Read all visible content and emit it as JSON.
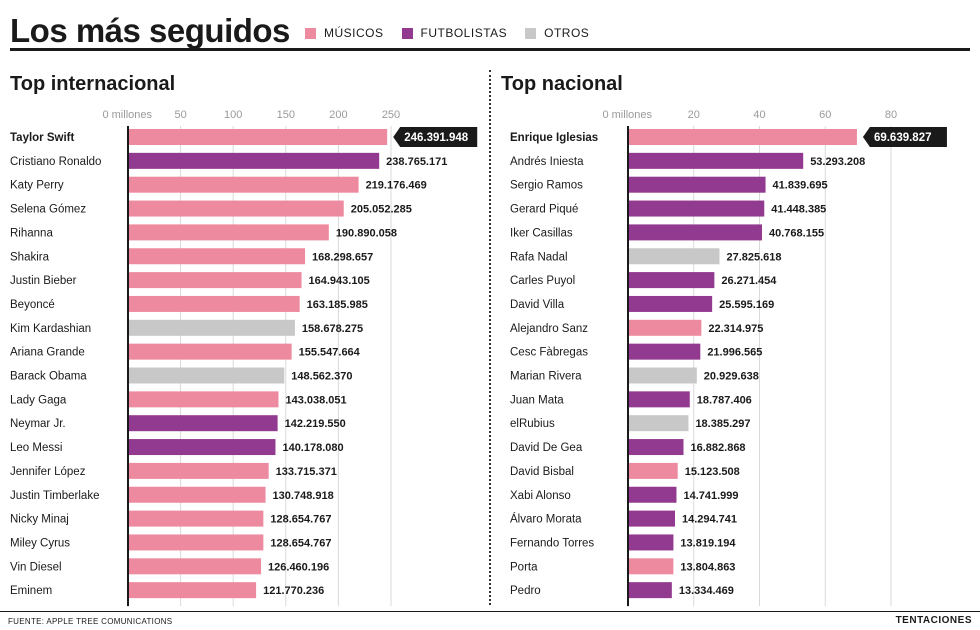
{
  "title": "Los más seguidos",
  "legend": [
    {
      "label": "MÚSICOS",
      "color": "#ee8aa0"
    },
    {
      "label": "FUTBOLISTAS",
      "color": "#923a8f"
    },
    {
      "label": "OTROS",
      "color": "#c8c8c8"
    }
  ],
  "footer": {
    "source": "FUENTE: APPLE TREE COMUNICATIONS",
    "brand": "TENTACIONES"
  },
  "colors": {
    "musico": "#ee8aa0",
    "futbolista": "#923a8f",
    "otro": "#c8c8c8",
    "highlight": "#1a1a1a"
  },
  "chart_data": [
    {
      "type": "bar",
      "orientation": "horizontal",
      "title": "Top internacional",
      "xlim": [
        0,
        250
      ],
      "ticks": [
        0,
        50,
        100,
        150,
        200,
        250
      ],
      "tick_labels": [
        "0 millones",
        "50",
        "100",
        "150",
        "200",
        "250"
      ],
      "highlight_index": 0,
      "categories": [
        "Taylor Swift",
        "Cristiano Ronaldo",
        "Katy Perry",
        "Selena Gómez",
        "Rihanna",
        "Shakira",
        "Justin Bieber",
        "Beyoncé",
        "Kim Kardashian",
        "Ariana Grande",
        "Barack Obama",
        "Lady Gaga",
        "Neymar Jr.",
        "Leo Messi",
        "Jennifer López",
        "Justin Timberlake",
        "Nicky Minaj",
        "Miley Cyrus",
        "Vin Diesel",
        "Eminem"
      ],
      "values": [
        246.391948,
        238.765171,
        219.176469,
        205.052285,
        190.890058,
        168.298657,
        164.943105,
        163.185985,
        158.678275,
        155.547664,
        148.56237,
        143.038051,
        142.21955,
        140.17808,
        133.715371,
        130.748918,
        128.654767,
        128.654767,
        126.460196,
        121.770236
      ],
      "value_labels": [
        "246.391.948",
        "238.765.171",
        "219.176.469",
        "205.052.285",
        "190.890.058",
        "168.298.657",
        "164.943.105",
        "163.185.985",
        "158.678.275",
        "155.547.664",
        "148.562.370",
        "143.038.051",
        "142.219.550",
        "140.178.080",
        "133.715.371",
        "130.748.918",
        "128.654.767",
        "128.654.767",
        "126.460.196",
        "121.770.236"
      ],
      "groups": [
        "musico",
        "futbolista",
        "musico",
        "musico",
        "musico",
        "musico",
        "musico",
        "musico",
        "otro",
        "musico",
        "otro",
        "musico",
        "futbolista",
        "futbolista",
        "musico",
        "musico",
        "musico",
        "musico",
        "musico",
        "musico"
      ]
    },
    {
      "type": "bar",
      "orientation": "horizontal",
      "title": "Top nacional",
      "xlim": [
        0,
        80
      ],
      "ticks": [
        0,
        20,
        40,
        60,
        80
      ],
      "tick_labels": [
        "0 millones",
        "20",
        "40",
        "60",
        "80"
      ],
      "highlight_index": 0,
      "categories": [
        "Enrique Iglesias",
        "Andrés Iniesta",
        "Sergio Ramos",
        "Gerard Piqué",
        "Iker Casillas",
        "Rafa Nadal",
        "Carles Puyol",
        "David Villa",
        "Alejandro Sanz",
        "Cesc Fàbregas",
        "Marian Rivera",
        "Juan Mata",
        "elRubius",
        "David De Gea",
        "David Bisbal",
        "Xabi Alonso",
        "Álvaro Morata",
        "Fernando Torres",
        "Porta",
        "Pedro"
      ],
      "values": [
        69.639827,
        53.293208,
        41.839695,
        41.448385,
        40.768155,
        27.825618,
        26.271454,
        25.595169,
        22.314975,
        21.996565,
        20.929638,
        18.787406,
        18.385297,
        16.882868,
        15.123508,
        14.741999,
        14.294741,
        13.819194,
        13.804863,
        13.334469
      ],
      "value_labels": [
        "69.639.827",
        "53.293.208",
        "41.839.695",
        "41.448.385",
        "40.768.155",
        "27.825.618",
        "26.271.454",
        "25.595.169",
        "22.314.975",
        "21.996.565",
        "20.929.638",
        "18.787.406",
        "18.385.297",
        "16.882.868",
        "15.123.508",
        "14.741.999",
        "14.294.741",
        "13.819.194",
        "13.804.863",
        "13.334.469"
      ],
      "groups": [
        "musico",
        "futbolista",
        "futbolista",
        "futbolista",
        "futbolista",
        "otro",
        "futbolista",
        "futbolista",
        "musico",
        "futbolista",
        "otro",
        "futbolista",
        "otro",
        "futbolista",
        "musico",
        "futbolista",
        "futbolista",
        "futbolista",
        "musico",
        "futbolista"
      ]
    }
  ]
}
